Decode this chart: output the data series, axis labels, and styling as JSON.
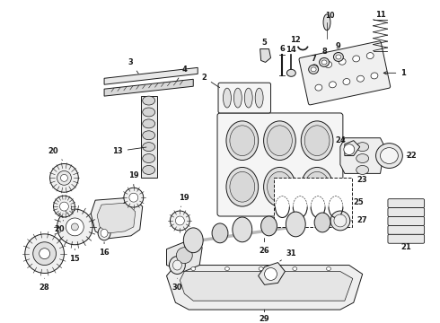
{
  "bg_color": "#ffffff",
  "line_color": "#1a1a1a",
  "fig_width": 4.9,
  "fig_height": 3.6,
  "dpi": 100
}
